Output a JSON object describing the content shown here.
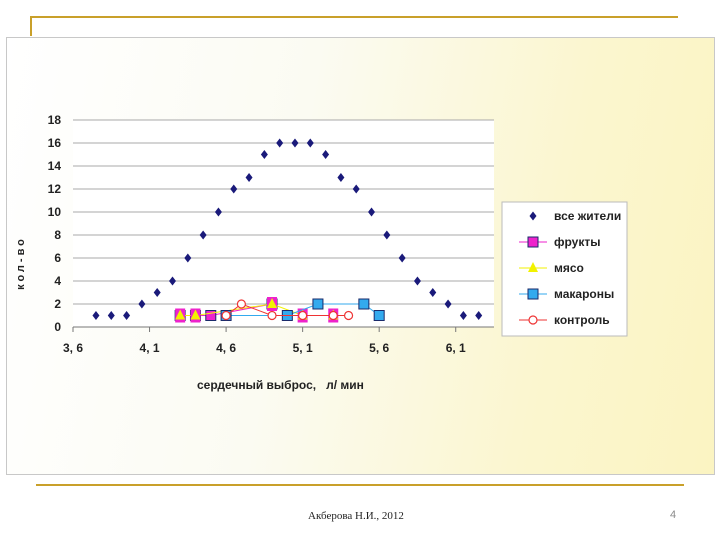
{
  "footer": {
    "author": "Акберова Н.И., 2012",
    "page_number": "4"
  },
  "chart_data": {
    "type": "scatter",
    "xlabel": "сердечный выброс,   л/ мин",
    "ylabel": "кол-во",
    "xlim": [
      3.6,
      6.35
    ],
    "ylim": [
      0,
      18
    ],
    "x_ticks": [
      {
        "value": 3.6,
        "label": "3, 6"
      },
      {
        "value": 4.1,
        "label": "4, 1"
      },
      {
        "value": 4.6,
        "label": "4, 6"
      },
      {
        "value": 5.1,
        "label": "5, 1"
      },
      {
        "value": 5.6,
        "label": "5, 6"
      },
      {
        "value": 6.1,
        "label": "6, 1"
      }
    ],
    "y_ticks": [
      0,
      2,
      4,
      6,
      8,
      10,
      12,
      14,
      16,
      18
    ],
    "grid": "horizontal",
    "legend_position": "right",
    "series": [
      {
        "name": "все жители",
        "marker": "diamond",
        "color": "#1a1a7a",
        "connected": false,
        "x": [
          3.75,
          3.85,
          3.95,
          4.05,
          4.15,
          4.25,
          4.35,
          4.45,
          4.55,
          4.65,
          4.75,
          4.85,
          4.95,
          5.05,
          5.15,
          5.25,
          5.35,
          5.45,
          5.55,
          5.65,
          5.75,
          5.85,
          5.95,
          6.05,
          6.15,
          6.25
        ],
        "y": [
          1,
          1,
          1,
          2,
          3,
          4,
          6,
          8,
          10,
          12,
          13,
          15,
          16,
          16,
          16,
          15,
          13,
          12,
          10,
          8,
          6,
          4,
          3,
          2,
          1,
          1
        ]
      },
      {
        "name": "фрукты",
        "marker": "square",
        "color": "#ee22cc",
        "connected": true,
        "x": [
          4.3,
          4.4,
          4.5,
          4.9
        ],
        "y": [
          1,
          1,
          1,
          2
        ]
      },
      {
        "name": "мясо",
        "marker": "triangle",
        "color": "#f2f200",
        "connected": true,
        "x": [
          4.3,
          4.4,
          4.9,
          5.1,
          5.3
        ],
        "y": [
          1,
          1,
          2,
          1,
          1
        ]
      },
      {
        "name": "макароны",
        "marker": "square",
        "color": "#33aaee",
        "connected": true,
        "x": [
          4.6,
          5.0,
          5.2,
          5.5,
          5.6
        ],
        "y": [
          1,
          1,
          2,
          2,
          1
        ]
      },
      {
        "name": "контроль",
        "marker": "circle",
        "color": "#ee3333",
        "connected": true,
        "x": [
          4.6,
          4.7,
          4.9,
          5.1,
          5.3,
          5.4
        ],
        "y": [
          1,
          2,
          1,
          1,
          1,
          1
        ]
      }
    ]
  }
}
